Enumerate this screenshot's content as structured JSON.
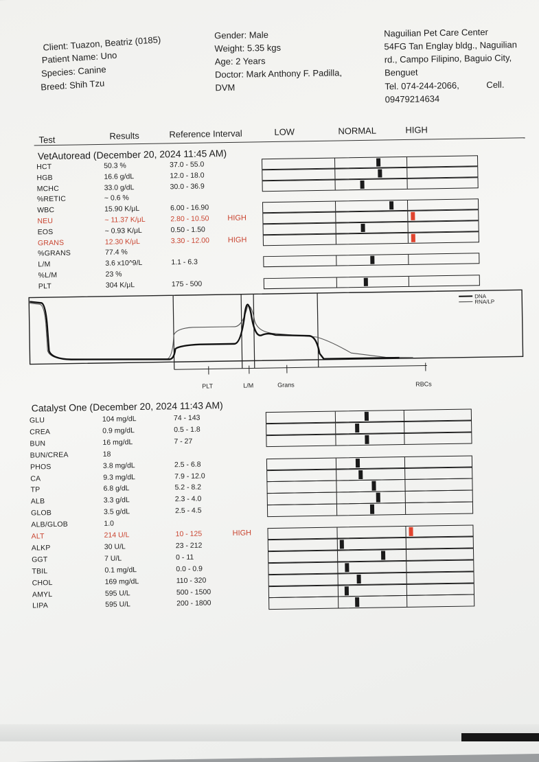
{
  "header": {
    "client": "Client: Tuazon, Beatriz (0185)",
    "patient": "Patient Name: Uno",
    "species": "Species: Canine",
    "breed": "Breed: Shih Tzu",
    "gender": "Gender: Male",
    "weight": "Weight: 5.35 kgs",
    "age": "Age: 2 Years",
    "doctor_line1": "Doctor: Mark Anthony F. Padilla,",
    "doctor_line2": "DVM",
    "clinic_name": "Naguilian Pet Care Center",
    "address_line1": "54FG Tan Englay bldg., Naguilian",
    "address_line2": "rd., Campo Filipino, Baguio City,",
    "address_line3": "Benguet",
    "tel_line": "Tel. 074-244-2066,",
    "cell_label": "Cell.",
    "cell_number": "09479214634"
  },
  "columns": {
    "test": "Test",
    "results": "Results",
    "reference": "Reference Interval",
    "low": "LOW",
    "normal": "NORMAL",
    "high": "HIGH"
  },
  "sections": [
    {
      "title": "VetAutoread (December 20, 2024 11:45 AM)",
      "rows": [
        {
          "name": "HCT",
          "value": "50.3 %",
          "ref": "37.0 - 55.0",
          "flag": "",
          "abnormal": false,
          "level": 0.58
        },
        {
          "name": "HGB",
          "value": "16.6 g/dL",
          "ref": "12.0 - 18.0",
          "flag": "",
          "abnormal": false,
          "level": 0.6
        },
        {
          "name": "MCHC",
          "value": "33.0 g/dL",
          "ref": "30.0 - 36.9",
          "flag": "",
          "abnormal": false,
          "level": 0.35
        },
        {
          "name": "%RETIC",
          "value": "~ 0.6 %",
          "ref": "",
          "flag": "",
          "abnormal": false,
          "level": null
        },
        {
          "name": "WBC",
          "value": "15.90 K/μL",
          "ref": "6.00 - 16.90",
          "flag": "",
          "abnormal": false,
          "level": 0.75
        },
        {
          "name": "NEU",
          "value": "~ 11.37 K/μL",
          "ref": "2.80 - 10.50",
          "flag": "HIGH",
          "abnormal": true,
          "level": 1.05
        },
        {
          "name": "EOS",
          "value": "~ 0.93 K/μL",
          "ref": "0.50 - 1.50",
          "flag": "",
          "abnormal": false,
          "level": 0.35
        },
        {
          "name": "GRANS",
          "value": "12.30 K/μL",
          "ref": "3.30 - 12.00",
          "flag": "HIGH",
          "abnormal": true,
          "level": 1.05
        },
        {
          "name": "%GRANS",
          "value": "77.4 %",
          "ref": "",
          "flag": "",
          "abnormal": false,
          "level": null
        },
        {
          "name": "L/M",
          "value": "3.6 x10^9/L",
          "ref": "1.1 - 6.3",
          "flag": "",
          "abnormal": false,
          "level": 0.48
        },
        {
          "name": "%L/M",
          "value": "23 %",
          "ref": "",
          "flag": "",
          "abnormal": false,
          "level": null
        },
        {
          "name": "PLT",
          "value": "304 K/μL",
          "ref": "175 - 500",
          "flag": "",
          "abnormal": false,
          "level": 0.38
        }
      ]
    },
    {
      "title": "Catalyst One (December 20, 2024 11:43 AM)",
      "rows": [
        {
          "name": "GLU",
          "value": "104 mg/dL",
          "ref": "74 - 143",
          "flag": "",
          "abnormal": false,
          "level": 0.43
        },
        {
          "name": "CREA",
          "value": "0.9 mg/dL",
          "ref": "0.5 - 1.8",
          "flag": "",
          "abnormal": false,
          "level": 0.29
        },
        {
          "name": "BUN",
          "value": "16 mg/dL",
          "ref": "7 - 27",
          "flag": "",
          "abnormal": false,
          "level": 0.43
        },
        {
          "name": "BUN/CREA",
          "value": "18",
          "ref": "",
          "flag": "",
          "abnormal": false,
          "level": null
        },
        {
          "name": "PHOS",
          "value": "3.8 mg/dL",
          "ref": "2.5 - 6.8",
          "flag": "",
          "abnormal": false,
          "level": 0.29
        },
        {
          "name": "CA",
          "value": "9.3 mg/dL",
          "ref": "7.9 - 12.0",
          "flag": "",
          "abnormal": false,
          "level": 0.33
        },
        {
          "name": "TP",
          "value": "6.8 g/dL",
          "ref": "5.2 - 8.2",
          "flag": "",
          "abnormal": false,
          "level": 0.52
        },
        {
          "name": "ALB",
          "value": "3.3 g/dL",
          "ref": "2.3 - 4.0",
          "flag": "",
          "abnormal": false,
          "level": 0.58
        },
        {
          "name": "GLOB",
          "value": "3.5 g/dL",
          "ref": "2.5 - 4.5",
          "flag": "",
          "abnormal": false,
          "level": 0.49
        },
        {
          "name": "ALB/GLOB",
          "value": "1.0",
          "ref": "",
          "flag": "",
          "abnormal": false,
          "level": null
        },
        {
          "name": "ALT",
          "value": "214 U/L",
          "ref": "10 - 125",
          "flag": "HIGH",
          "abnormal": true,
          "level": 1.05
        },
        {
          "name": "ALKP",
          "value": "30 U/L",
          "ref": "23 - 212",
          "flag": "",
          "abnormal": false,
          "level": 0.04
        },
        {
          "name": "GGT",
          "value": "7 U/L",
          "ref": "0 - 11",
          "flag": "",
          "abnormal": false,
          "level": 0.64
        },
        {
          "name": "TBIL",
          "value": "0.1 mg/dL",
          "ref": "0.0 - 0.9",
          "flag": "",
          "abnormal": false,
          "level": 0.11
        },
        {
          "name": "CHOL",
          "value": "169 mg/dL",
          "ref": "110 - 320",
          "flag": "",
          "abnormal": false,
          "level": 0.28
        },
        {
          "name": "AMYL",
          "value": "595 U/L",
          "ref": "500 - 1500",
          "flag": "",
          "abnormal": false,
          "level": 0.1
        },
        {
          "name": "LIPA",
          "value": "595 U/L",
          "ref": "200 - 1800",
          "flag": "",
          "abnormal": false,
          "level": 0.25
        }
      ]
    }
  ],
  "histogram": {
    "gate_labels": [
      "PLT",
      "L/M",
      "Grans",
      "RBCs"
    ],
    "legend": [
      "DNA",
      "RNA/LP"
    ]
  }
}
